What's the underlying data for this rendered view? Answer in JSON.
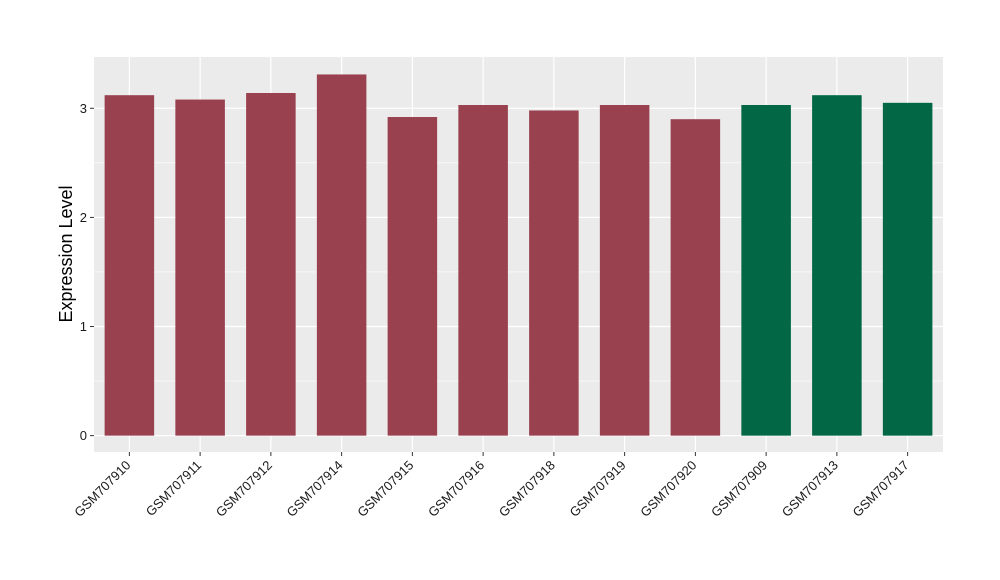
{
  "chart_data": {
    "type": "bar",
    "title": "",
    "xlabel": "",
    "ylabel": "Expression Level",
    "categories": [
      "GSM707910",
      "GSM707911",
      "GSM707912",
      "GSM707914",
      "GSM707915",
      "GSM707916",
      "GSM707918",
      "GSM707919",
      "GSM707920",
      "GSM707909",
      "GSM707913",
      "GSM707917"
    ],
    "values": [
      3.12,
      3.08,
      3.14,
      3.31,
      2.92,
      3.03,
      2.98,
      3.03,
      2.9,
      3.03,
      3.12,
      3.05
    ],
    "groups": [
      0,
      0,
      0,
      0,
      0,
      0,
      0,
      0,
      0,
      1,
      1,
      1
    ],
    "group_colors": [
      "#99414f",
      "#016744"
    ],
    "yticks": [
      0,
      1,
      2,
      3
    ],
    "ylim": [
      -0.15,
      3.47
    ],
    "grid": true,
    "panel_background": "#ebebeb",
    "grid_color": "#ffffff",
    "legend": "none"
  }
}
